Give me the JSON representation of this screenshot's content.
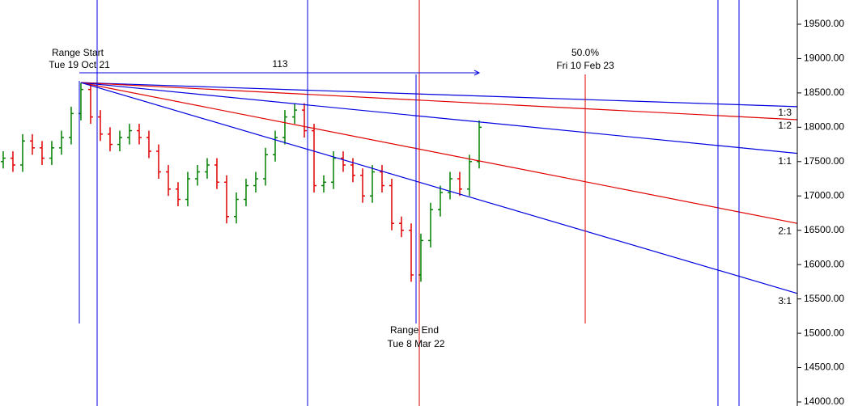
{
  "chart_data": {
    "type": "ohlc",
    "x": [
      0,
      1,
      2,
      3,
      4,
      5,
      6,
      7,
      8,
      9,
      10,
      11,
      12,
      13,
      14,
      15,
      16,
      17,
      18,
      19,
      20,
      21,
      22,
      23,
      24,
      25,
      26,
      27,
      28,
      29,
      30,
      31,
      32,
      33,
      34,
      35,
      36,
      37,
      38,
      39,
      40,
      41,
      42,
      43,
      44,
      45,
      46,
      47,
      48,
      49
    ],
    "open": [
      17500,
      17550,
      17450,
      17800,
      17700,
      17550,
      17700,
      17850,
      18200,
      18550,
      18150,
      17900,
      17750,
      17850,
      17950,
      17850,
      17650,
      17350,
      17100,
      16950,
      17250,
      17350,
      17450,
      17200,
      16700,
      16950,
      17150,
      17250,
      17600,
      17850,
      18150,
      18250,
      17950,
      17150,
      17200,
      17550,
      17450,
      17300,
      17000,
      17350,
      17150,
      16600,
      16500,
      15850,
      16350,
      16800,
      17050,
      17250,
      17100,
      17500
    ],
    "high": [
      17650,
      17650,
      17900,
      17900,
      17800,
      17800,
      17950,
      18300,
      18650,
      18650,
      18250,
      18000,
      17950,
      18050,
      18050,
      17950,
      17750,
      17450,
      17200,
      17350,
      17450,
      17550,
      17550,
      17300,
      17050,
      17250,
      17350,
      17700,
      17950,
      18250,
      18350,
      18350,
      18050,
      17300,
      17650,
      17650,
      17550,
      17400,
      17450,
      17450,
      17250,
      16700,
      16600,
      16450,
      16900,
      17150,
      17350,
      17350,
      17600,
      18100
    ],
    "low": [
      17400,
      17350,
      17350,
      17600,
      17450,
      17450,
      17600,
      17750,
      18100,
      18050,
      17800,
      17650,
      17650,
      17750,
      17750,
      17550,
      17250,
      17000,
      16850,
      16850,
      17150,
      17250,
      17100,
      16600,
      16600,
      16850,
      17050,
      17150,
      17500,
      17750,
      18050,
      17850,
      17050,
      17050,
      17100,
      17350,
      17200,
      16900,
      16900,
      17050,
      16500,
      16400,
      15750,
      15750,
      16250,
      16700,
      16950,
      17000,
      17000,
      17400
    ],
    "close": [
      17550,
      17450,
      17800,
      17700,
      17550,
      17700,
      17850,
      18200,
      18550,
      18150,
      17900,
      17750,
      17850,
      17950,
      17850,
      17650,
      17350,
      17100,
      16950,
      17250,
      17350,
      17450,
      17200,
      16700,
      16950,
      17150,
      17250,
      17600,
      17850,
      18150,
      18250,
      17950,
      17150,
      17200,
      17550,
      17450,
      17300,
      17000,
      17350,
      17150,
      16600,
      16500,
      15850,
      16350,
      16800,
      17050,
      17250,
      17100,
      17500,
      18000
    ],
    "up_color": "#008000",
    "down_color": "#e00000",
    "xlim": [
      -0.33,
      81.75
    ],
    "ylim": [
      13941,
      19853
    ],
    "yticks": [
      {
        "value": 14000,
        "label": "14000.00"
      },
      {
        "value": 14500,
        "label": "14500.00"
      },
      {
        "value": 15000,
        "label": "15000.00"
      },
      {
        "value": 15500,
        "label": "15500.00"
      },
      {
        "value": 16000,
        "label": "16000.00"
      },
      {
        "value": 16500,
        "label": "16500.00"
      },
      {
        "value": 17000,
        "label": "17000.00"
      },
      {
        "value": 17500,
        "label": "17500.00"
      },
      {
        "value": 18000,
        "label": "18000.00"
      },
      {
        "value": 18500,
        "label": "18500.00"
      },
      {
        "value": 19000,
        "label": "19000.00"
      },
      {
        "value": 19500,
        "label": "19500.00"
      }
    ],
    "fan_start": [
      8,
      18650
    ],
    "fans": [
      {
        "name": "1:3",
        "color": "#0000e0",
        "end": 18300
      },
      {
        "name": "1:2",
        "color": "#e00000",
        "end": 18110
      },
      {
        "name": "1:1",
        "color": "#0000e0",
        "end": 17620
      },
      {
        "name": "2:1",
        "color": "#e00000",
        "end": 16600
      },
      {
        "name": "3:1",
        "color": "#0000e0",
        "end": 15580
      }
    ],
    "annotations": {
      "range_start": "Range Start",
      "start_date": "Tue 19 Oct 21",
      "bars": "113",
      "percent": "50.0%",
      "target_date": "Fri 10 Feb 23",
      "range_end": "Range End",
      "end_date": "Tue 8 Mar 22"
    }
  }
}
